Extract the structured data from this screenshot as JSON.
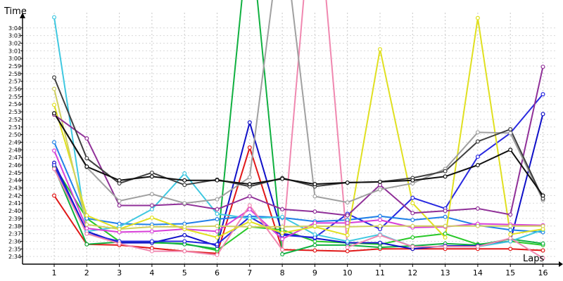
{
  "chart_data": {
    "type": "line",
    "xlabel": "Laps",
    "ylabel": "Time",
    "grid": true,
    "x": [
      1,
      2,
      3,
      4,
      5,
      6,
      7,
      8,
      9,
      10,
      11,
      12,
      13,
      14,
      15,
      16
    ],
    "ylim": [
      153.0,
      184.9
    ],
    "yticks": [
      {
        "value": 154,
        "label": "2:34"
      },
      {
        "value": 155,
        "label": "2:35"
      },
      {
        "value": 156,
        "label": "2:36"
      },
      {
        "value": 157,
        "label": "2:37"
      },
      {
        "value": 158,
        "label": "2:38"
      },
      {
        "value": 159,
        "label": "2:39"
      },
      {
        "value": 160,
        "label": "2:40"
      },
      {
        "value": 161,
        "label": "2:41"
      },
      {
        "value": 162,
        "label": "2:42"
      },
      {
        "value": 163,
        "label": "2:43"
      },
      {
        "value": 164,
        "label": "2:44"
      },
      {
        "value": 165,
        "label": "2:45"
      },
      {
        "value": 166,
        "label": "2:46"
      },
      {
        "value": 167,
        "label": "2:47"
      },
      {
        "value": 168,
        "label": "2:48"
      },
      {
        "value": 169,
        "label": "2:49"
      },
      {
        "value": 170,
        "label": "2:50"
      },
      {
        "value": 171,
        "label": "2:51"
      },
      {
        "value": 172,
        "label": "2:52"
      },
      {
        "value": 173,
        "label": "2:53"
      },
      {
        "value": 174,
        "label": "2:54"
      },
      {
        "value": 175,
        "label": "2:55"
      },
      {
        "value": 176,
        "label": "2:56"
      },
      {
        "value": 177,
        "label": "2:57"
      },
      {
        "value": 178,
        "label": "2:58"
      },
      {
        "value": 179,
        "label": "2:59"
      },
      {
        "value": 180,
        "label": "3:00"
      },
      {
        "value": 181,
        "label": "3:01"
      },
      {
        "value": 182,
        "label": "3:02"
      },
      {
        "value": 183,
        "label": "3:03"
      },
      {
        "value": 184,
        "label": "3:04"
      }
    ],
    "series": [
      {
        "color": "#e01818",
        "values": [
          162.0,
          155.6,
          155.5,
          155.1,
          154.7,
          154.4,
          168.3,
          154.9,
          154.8,
          154.7,
          155.0,
          155.0,
          155.0,
          155.0,
          155.0,
          154.8
        ]
      },
      {
        "color": "#28c828",
        "values": [
          165.9,
          159.0,
          156.0,
          155.8,
          155.7,
          154.8,
          157.9,
          157.5,
          156.0,
          155.8,
          155.6,
          156.5,
          157.0,
          155.6,
          156.0,
          155.5
        ]
      },
      {
        "color": "#10b040",
        "values": [
          165.7,
          155.6,
          155.9,
          155.9,
          155.6,
          155.0,
          198.0,
          154.3,
          155.5,
          155.5,
          155.2,
          155.4,
          155.7,
          155.5,
          156.3,
          155.7
        ]
      },
      {
        "color": "#1010c8",
        "values": [
          166.3,
          157.3,
          155.8,
          155.8,
          156.8,
          155.4,
          171.6,
          157.0,
          156.4,
          155.8,
          155.8,
          155.0,
          155.4,
          155.4,
          156.0,
          172.7
        ]
      },
      {
        "color": "#2828e0",
        "values": [
          166.0,
          157.0,
          156.0,
          156.0,
          156.0,
          155.6,
          159.2,
          156.8,
          156.5,
          159.6,
          157.6,
          161.7,
          160.3,
          167.1,
          170.2,
          175.3
        ]
      },
      {
        "color": "#2080e8",
        "values": [
          169.0,
          159.0,
          158.3,
          158.2,
          158.3,
          158.9,
          159.3,
          159.1,
          158.6,
          158.8,
          159.3,
          158.8,
          159.2,
          158.1,
          157.5,
          157.2
        ]
      },
      {
        "color": "#40c8e0",
        "values": [
          185.4,
          157.3,
          157.9,
          160.2,
          164.9,
          159.6,
          159.0,
          159.2,
          156.9,
          156.0,
          156.9,
          155.3,
          155.3,
          155.3,
          156.0,
          157.5
        ]
      },
      {
        "color": "#d840d8",
        "values": [
          167.9,
          157.7,
          157.2,
          157.3,
          157.6,
          157.3,
          160.2,
          156.3,
          158.4,
          158.4,
          158.8,
          157.8,
          157.9,
          158.3,
          158.2,
          158.1
        ]
      },
      {
        "color": "#f088b0",
        "values": [
          165.5,
          157.0,
          155.7,
          154.7,
          154.7,
          154.2,
          160.7,
          154.9,
          205.0,
          155.2,
          156.8,
          155.3,
          155.3,
          155.3,
          156.4,
          153.8
        ]
      },
      {
        "color": "#e0e020",
        "values": [
          173.9,
          159.4,
          157.6,
          159.1,
          157.6,
          156.5,
          158.6,
          157.1,
          157.9,
          156.8,
          181.2,
          161.0,
          156.5,
          185.3,
          156.9,
          157.6
        ]
      },
      {
        "color": "#d0d060",
        "values": [
          176.0,
          158.2,
          157.6,
          157.9,
          157.9,
          158.0,
          157.9,
          157.9,
          158.0,
          157.9,
          158.0,
          158.0,
          158.0,
          158.0,
          158.0,
          158.0
        ]
      },
      {
        "color": "#903098",
        "values": [
          172.6,
          169.5,
          160.7,
          160.7,
          160.9,
          160.2,
          161.9,
          160.2,
          159.9,
          159.4,
          163.4,
          159.7,
          160.0,
          160.3,
          159.5,
          178.9
        ]
      },
      {
        "color": "#a0a0a0",
        "values": [
          172.8,
          165.7,
          161.3,
          162.2,
          161.0,
          161.5,
          164.4,
          198.0,
          161.9,
          161.1,
          162.8,
          163.6,
          165.5,
          170.3,
          170.2,
          161.4
        ]
      },
      {
        "color": "#404040",
        "values": [
          177.5,
          166.9,
          163.6,
          165.0,
          163.4,
          164.1,
          163.2,
          164.3,
          163.2,
          163.7,
          163.8,
          164.3,
          165.2,
          169.1,
          170.7,
          161.6
        ]
      },
      {
        "color": "#101010",
        "values": [
          172.8,
          165.8,
          164.0,
          164.5,
          164.0,
          164.0,
          163.5,
          164.2,
          163.5,
          163.7,
          163.8,
          164.0,
          164.5,
          166.0,
          168.0,
          162.0
        ]
      }
    ]
  }
}
